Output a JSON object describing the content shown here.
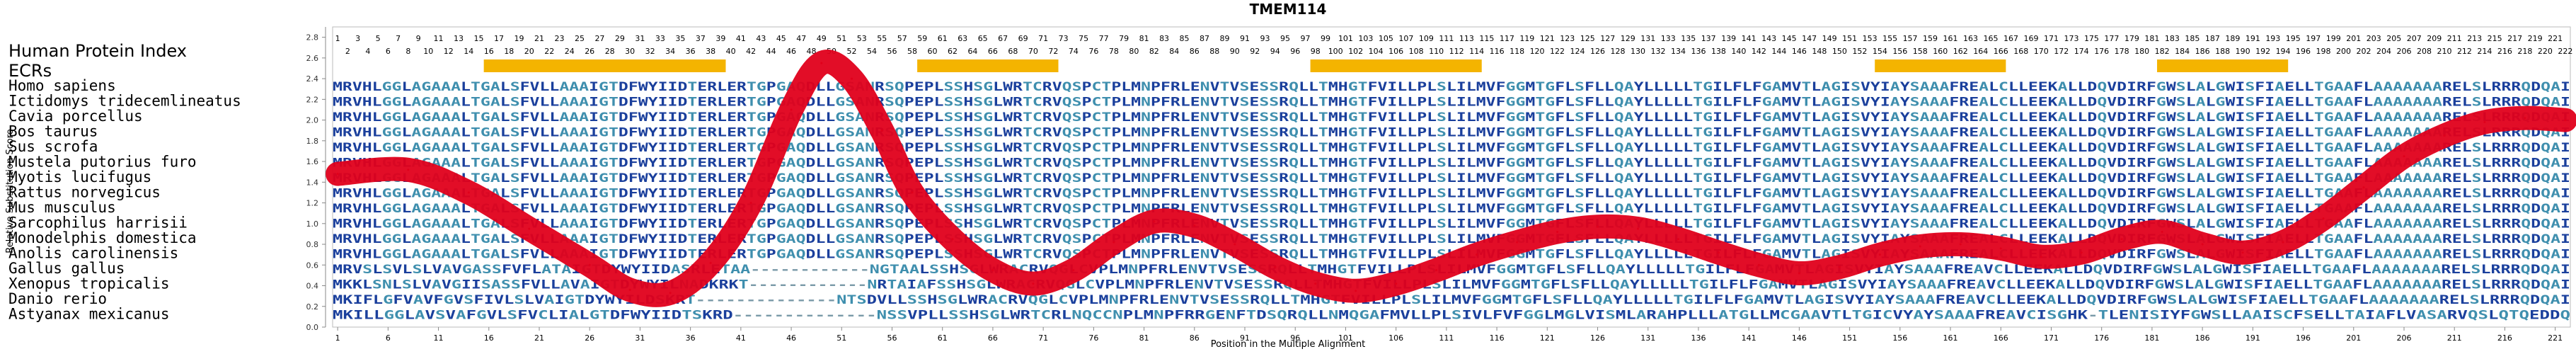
{
  "chart_data": {
    "type": "line",
    "title": "TMEM114",
    "xlabel": "Position in the Multiple Alignment",
    "ylabel": "Relative Substitution Score",
    "ylim": [
      0,
      2.9
    ],
    "yticks": [
      0.0,
      0.2,
      0.4,
      0.6,
      0.8,
      1.0,
      1.2,
      1.4,
      1.6,
      1.8,
      2.0,
      2.2,
      2.4,
      2.6,
      2.8
    ],
    "bottom_ticks": [
      1,
      6,
      11,
      16,
      21,
      26,
      31,
      36,
      41,
      46,
      51,
      56,
      61,
      66,
      71,
      76,
      81,
      86,
      91,
      96,
      101,
      106,
      111,
      116,
      121,
      126,
      131,
      136,
      141,
      146,
      151,
      156,
      161,
      166,
      171,
      176,
      181,
      186,
      191,
      196,
      201,
      206,
      211,
      216,
      221
    ],
    "top_ticks_row1": [
      1,
      3,
      5,
      7,
      9,
      11,
      13,
      15,
      17,
      19,
      21,
      23,
      25,
      27,
      29,
      31,
      33,
      35,
      37,
      39,
      41,
      43,
      45,
      47,
      49,
      51,
      53,
      55,
      57,
      59,
      61,
      63,
      65,
      67,
      69,
      71,
      73,
      75,
      77,
      79,
      81,
      83,
      85,
      87,
      89,
      91,
      93,
      95,
      97,
      99,
      101,
      103,
      105,
      107,
      109,
      111,
      113,
      115,
      117,
      119,
      121,
      123,
      125,
      127,
      129,
      131,
      133,
      135,
      137,
      139,
      141,
      143,
      145,
      147,
      149,
      151,
      153,
      155,
      157,
      159,
      161,
      163,
      165,
      167,
      169,
      171,
      173,
      175,
      177,
      179,
      181,
      183,
      185,
      187,
      189,
      191,
      193,
      195,
      197,
      199,
      201,
      203,
      205,
      207,
      209,
      211,
      213,
      215,
      217,
      219,
      221
    ],
    "top_ticks_row2": [
      2,
      4,
      6,
      8,
      10,
      12,
      14,
      16,
      18,
      20,
      22,
      24,
      26,
      28,
      30,
      32,
      34,
      36,
      38,
      40,
      42,
      44,
      46,
      48,
      50,
      52,
      54,
      56,
      58,
      60,
      62,
      64,
      66,
      68,
      70,
      72,
      74,
      76,
      78,
      80,
      82,
      84,
      86,
      88,
      90,
      92,
      94,
      96,
      98,
      100,
      102,
      104,
      106,
      108,
      110,
      112,
      114,
      116,
      118,
      120,
      122,
      124,
      126,
      128,
      130,
      132,
      134,
      136,
      138,
      140,
      142,
      144,
      146,
      148,
      150,
      152,
      154,
      156,
      158,
      160,
      162,
      164,
      166,
      168,
      170,
      172,
      174,
      176,
      178,
      180,
      182,
      184,
      186,
      188,
      190,
      192,
      194,
      196,
      198,
      200,
      202,
      204,
      206,
      208,
      210,
      212,
      214,
      216,
      218,
      220,
      222
    ],
    "header_left": "Human Protein Index",
    "ecr_label": "ECRs",
    "ecr_regions": [
      [
        16,
        39
      ],
      [
        59,
        72
      ],
      [
        98,
        114
      ],
      [
        154,
        166
      ],
      [
        182,
        194
      ]
    ],
    "series": [
      {
        "x": [
          1,
          8,
          14,
          20,
          26,
          30,
          34,
          38,
          42,
          46,
          49,
          52,
          55,
          58,
          62,
          66,
          70,
          74,
          78,
          82,
          86,
          90,
          94,
          98,
          102,
          106,
          110,
          114,
          118,
          122,
          126,
          130,
          134,
          138,
          142,
          146,
          150,
          154,
          158,
          162,
          166,
          170,
          174,
          178,
          182,
          186,
          190,
          194,
          198,
          202,
          206,
          210,
          214,
          218,
          222
        ],
        "values": [
          1.48,
          1.52,
          1.3,
          0.95,
          0.6,
          0.36,
          0.33,
          0.62,
          1.2,
          2.1,
          2.55,
          2.4,
          1.9,
          1.3,
          0.85,
          0.55,
          0.42,
          0.55,
          0.82,
          1.02,
          0.98,
          0.8,
          0.58,
          0.42,
          0.35,
          0.42,
          0.55,
          0.7,
          0.82,
          0.92,
          0.97,
          0.95,
          0.85,
          0.72,
          0.6,
          0.52,
          0.58,
          0.7,
          0.78,
          0.8,
          0.76,
          0.68,
          0.72,
          0.85,
          0.92,
          0.8,
          0.72,
          0.82,
          1.05,
          1.35,
          1.65,
          1.85,
          1.98,
          2.02,
          2.0
        ]
      }
    ]
  },
  "alignment": [
    {
      "name": "Homo sapiens",
      "seq": "MRVHLGGLAGAAALTGALSFVLLAAAIGTDFWYIIDTERLERTGPGAQDLLGSANRSQPEPLSSHSGLWRTCRVQSPCTPLMNPFRLENVTVSESSRQLLTMHGTFVILLPLSLILMVFGGMTGFLSFLLQAYLLLLLTGILFLFGAMVTLAGISVYIAYSAAAFREALCLLEEKALLDQVDIRFGWSLALGWISFIAELLTGAAFLAAAAAAARELSLRRRQDQAI"
    },
    {
      "name": "Ictidomys tridecemlineatus",
      "seq": "MRVHLGGLAGAAALTGALSFVLLAAAIGTDFWYIIDTERLERTGPGAQDLLGSANRSQPEPLSSHSGLWRTCRVQSPCTPLMNPFRLENVTVSESSRQLLTMHGTFVILLPLSLILMVFGGMTGFLSFLLQAYLLLLLTGILFLFGAMVTLAGISVYIAYSAAAFREALCLLEEKALLDQVDIRFGWSLALGWISFIAELLTGAAFLAAAAAAARELSLRRRQDQAI"
    },
    {
      "name": "Cavia porcellus",
      "seq": "MRVHLGGLAGAAALTGALSFVLLAAAIGTDFWYIIDTERLERTGPGAQDLLGSANRSQPEPLSSHSGLWRTCRVQSPCTPLMNPFRLENVTVSESSRQLLTMHGTFVILLPLSLILMVFGGMTGFLSFLLQAYLLLLLTGILFLFGAMVTLAGISVYIAYSAAAFREALCLLEEKALLDQVDIRFGWSLALGWISFIAELLTGAAFLAAAAAAARELSLRRRQDQAI"
    },
    {
      "name": "Bos taurus",
      "seq": "MRVHLGGLAGAAALTGALSFVLLAAAIGTDFWYIIDTERLERTGPGAQDLLGSANRSQPEPLSSHSGLWRTCRVQSPCTPLMNPFRLENVTVSESSRQLLTMHGTFVILLPLSLILMVFGGMTGFLSFLLQAYLLLLLTGILFLFGAMVTLAGISVYIAYSAAAFREALCLLEEKALLDQVDIRFGWSLALGWISFIAELLTGAAFLAAAAAAARELSLRRRQDQAI"
    },
    {
      "name": "Sus scrofa",
      "seq": "MRVHLGGLAGAAALTGALSFVLLAAAIGTDFWYIIDTERLERTGPGAQDLLGSANRSQPEPLSSHSGLWRTCRVQSPCTPLMNPFRLENVTVSESSRQLLTMHGTFVILLPLSLILMVFGGMTGFLSFLLQAYLLLLLTGILFLFGAMVTLAGISVYIAYSAAAFREALCLLEEKALLDQVDIRFGWSLALGWISFIAELLTGAAFLAAAAAAARELSLRRRQDQAI"
    },
    {
      "name": "Mustela putorius furo",
      "seq": "MRVHLGGLAGAAALTGALSFVLLAAAIGTDFWYIIDTERLERTGPGAQDLLGSANRSQPEPLSSHSGLWRTCRVQSPCTPLMNPFRLENVTVSESSRQLLTMHGTFVILLPLSLILMVFGGMTGFLSFLLQAYLLLLLTGILFLFGAMVTLAGISVYIAYSAAAFREALCLLEEKALLDQVDIRFGWSLALGWISFIAELLTGAAFLAAAAAAARELSLRRRQDQAI"
    },
    {
      "name": "Myotis lucifugus",
      "seq": "MRVHLGGLAGAAALTGALSFVLLAAAIGTDFWYIIDTERLERTGPGAQDLLGSANRSQPEPLSSHSGLWRTCRVQSPCTPLMNPFRLENVTVSESSRQLLTMHGTFVILLPLSLILMVFGGMTGFLSFLLQAYLLLLLTGILFLFGAMVTLAGISVYIAYSAAAFREALCLLEEKALLDQVDIRFGWSLALGWISFIAELLTGAAFLAAAAAAARELSLRRRQDQAI"
    },
    {
      "name": "Rattus norvegicus",
      "seq": "MRVHLGGLAGAAALTGALSFVLLAAAIGTDFWYIIDTERLERTGPGAQDLLGSANRSQPEPLSSHSGLWRTCRVQSPCTPLMNPFRLENVTVSESSRQLLTMHGTFVILLPLSLILMVFGGMTGFLSFLLQAYLLLLLTGILFLFGAMVTLAGISVYIAYSAAAFREALCLLEEKALLDQVDIRFGWSLALGWISFIAELLTGAAFLAAAAAAARELSLRRRQDQAI"
    },
    {
      "name": "Mus musculus",
      "seq": "MRVHLGGLAGAAALTGALSFVLLAAAIGTDFWYIIDTERLERTGPGAQDLLGSANRSQPEPLSSHSGLWRTCRVQSPCTPLMNPFRLENVTVSESSRQLLTMHGTFVILLPLSLILMVFGGMTGFLSFLLQAYLLLLLTGILFLFGAMVTLAGISVYIAYSAAAFREALCLLEEKALLDQVDIRFGWSLALGWISFIAELLTGAAFLAAAAAAARELSLRRRQDQAI"
    },
    {
      "name": "Sarcophilus harrisii",
      "seq": "MRVHLGGLAGAAALTGALSFVLLAAAIGTDFWYIIDTERLERTGPGAQDLLGSANRSQPEPLSSHSGLWRTCRVQSPCTPLMNPFRLENVTVSESSRQLLTMHGTFVILLPLSLILMVFGGMTGFLSFLLQAYLLLLLTGILFLFGAMVTLAGISVYIAYSAAAFREALCLLEEKALLDQVDIRFGWSLALGWISFIAELLTGAAFLAAAAAAARELSLRRRQDQAI"
    },
    {
      "name": "Monodelphis domestica",
      "seq": "MRVHLGGLAGAAALTGALSFVLLAAAIGTDFWYIIDTERLERTGPGAQDLLGSANRSQPEPLSSHSGLWRTCRVQSPCTPLMNPFRLENVTVSESSRQLLTMHGTFVILLPLSLILMVFGGMTGFLSFLLQAYLLLLLTGILFLFGAMVTLAGISVYIAYSAAAFREALCLLEEKALLDQVDIRFGWSLALGWISFIAELLTGAAFLAAAAAAARELSLRRRQDQAI"
    },
    {
      "name": "Anolis carolinensis",
      "seq": "MRVHLGGLAGAAALTGALSFVLLAAAIGTDFWYIIDTERLERTGPGAQDLLGSANRSQPEPLSSHSGLWRTCRVQSPCTPLMNPFRLENVTVSESSRQLLTMHGTFVILLPLSLILMVFGGMTGFLSFLLQAYLLLLLTGILFLFGAMVTLAGISVYIAYSAAAFREALCLLEEKALLDQVDIRFGWSLALGWISFIAELLTGAAFLAAAAAAARELSLRRRQDQAI"
    },
    {
      "name": "Gallus gallus",
      "seq": "MRVSLSVLSLVAVGASSFVFLATAIGTDYWYIIDASRLETAA------------NGTAALSSHSGLWRACRVQGLCVPLMNPFRLENVTVSESSRQLLTMHGTFVILLPLSLILMVFGGMTGFLSFLLQAYLLLLLTGILFLFGAMVTLAGISVYIAYSAAAFREAVCLLEEKALLDQVDIRFGWSLALGWISFIAELLTGAAFLAAAAAAARELSLRRRQDQAI"
    },
    {
      "name": "Xenopus tropicalis",
      "seq": "MKKLSNLSLVAVGIISASSFVLLAVAIGTDYWYILNADKRKT------------NRTAIAFSSHSGLWRACRVQGLCVPLMNPFRLENVTVSESSRQLLTMHGTFVILLPLSLILMVFGGMTGFLSFLLQAYLLLLLTGILFLFGAMVTLAGISVYIAYSAAAFREAVCLLEEKALLDQVDIRFGWSLALGWISFIAELLTGAAFLAAAAAAARELSLRRRQDQAI"
    },
    {
      "name": "Danio rerio",
      "seq": "MKIFLGFVAVFGVSFIVLSLVAIGTDYWYILDSKRT--------------NTSDVLLSSHSGLWRACRVQGLCVPLMNPFRLENVTVSESSRQLLTMHGTFVILLPLSLILMVFGGMTGFLSFLLQAYLLLLLTGILFLFGAMVTLAGISVYIAYSAAAFREAVCLLEEKALLDQVDIRFGWSLALGWISFIAELLTGAAFLAAAAAAARELSLRRRQDQAI"
    },
    {
      "name": "Astyanax mexicanus",
      "seq": "MKILLGGLAVSVAFGVLSFVCLIALGTDFWYIIDTSKRD--------------NSSVPLLSSHSGLWRTCRLNQCCNPLMNPFRRGENFTDSQRQLLNMQGAFMVLLPLSIVLFVFGGLMGLVISMLARAHPLLLATGLLMCGAAVTLTGICVYAYSAAAFREAVCISGHK-TLENISIYFGWSLLAAISCFSELLTAIAFLVASARVQSLQTQEDDQ"
    }
  ]
}
